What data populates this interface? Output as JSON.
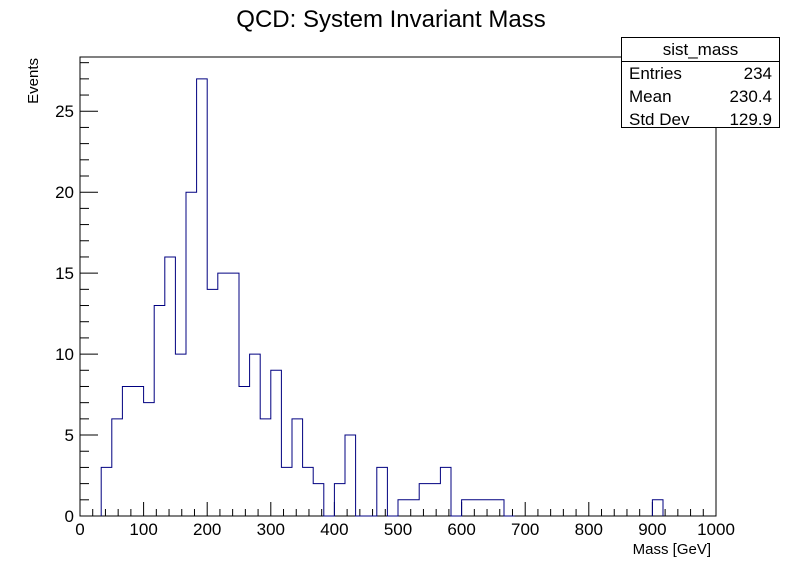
{
  "chart_data": {
    "type": "histogram",
    "title": "QCD: System Invariant Mass",
    "xlabel": "Mass [GeV]",
    "ylabel": "Events",
    "xlim": [
      0,
      1000
    ],
    "ylim": [
      0,
      28.35
    ],
    "bin_width": 16.667,
    "x_ticks": [
      "0",
      "100",
      "200",
      "300",
      "400",
      "500",
      "600",
      "700",
      "800",
      "900",
      "1000"
    ],
    "y_ticks": [
      "0",
      "5",
      "10",
      "15",
      "20",
      "25"
    ],
    "bins": [
      {
        "x": 33.33,
        "value": 3
      },
      {
        "x": 50.0,
        "value": 6
      },
      {
        "x": 66.67,
        "value": 8
      },
      {
        "x": 83.33,
        "value": 8
      },
      {
        "x": 100.0,
        "value": 7
      },
      {
        "x": 116.67,
        "value": 13
      },
      {
        "x": 133.33,
        "value": 16
      },
      {
        "x": 150.0,
        "value": 10
      },
      {
        "x": 166.67,
        "value": 20
      },
      {
        "x": 183.33,
        "value": 27
      },
      {
        "x": 200.0,
        "value": 14
      },
      {
        "x": 216.67,
        "value": 15
      },
      {
        "x": 233.33,
        "value": 15
      },
      {
        "x": 250.0,
        "value": 8
      },
      {
        "x": 266.67,
        "value": 10
      },
      {
        "x": 283.33,
        "value": 6
      },
      {
        "x": 300.0,
        "value": 9
      },
      {
        "x": 316.67,
        "value": 3
      },
      {
        "x": 333.33,
        "value": 6
      },
      {
        "x": 350.0,
        "value": 3
      },
      {
        "x": 366.67,
        "value": 2
      },
      {
        "x": 383.33,
        "value": 0
      },
      {
        "x": 400.0,
        "value": 2
      },
      {
        "x": 416.67,
        "value": 5
      },
      {
        "x": 433.33,
        "value": 0
      },
      {
        "x": 450.0,
        "value": 0
      },
      {
        "x": 466.67,
        "value": 3
      },
      {
        "x": 483.33,
        "value": 0
      },
      {
        "x": 500.0,
        "value": 1
      },
      {
        "x": 516.67,
        "value": 1
      },
      {
        "x": 533.33,
        "value": 2
      },
      {
        "x": 550.0,
        "value": 2
      },
      {
        "x": 566.67,
        "value": 3
      },
      {
        "x": 583.33,
        "value": 0
      },
      {
        "x": 600.0,
        "value": 1
      },
      {
        "x": 616.67,
        "value": 1
      },
      {
        "x": 633.33,
        "value": 1
      },
      {
        "x": 650.0,
        "value": 1
      },
      {
        "x": 666.67,
        "value": 0
      },
      {
        "x": 900.0,
        "value": 1
      }
    ],
    "line_color": "#000080",
    "grid": false
  },
  "stats_box": {
    "name": "sist_mass",
    "rows": [
      {
        "label": "Entries",
        "value": "234"
      },
      {
        "label": "Mean",
        "value": "230.4"
      },
      {
        "label": "Std Dev",
        "value": "129.9"
      }
    ]
  }
}
